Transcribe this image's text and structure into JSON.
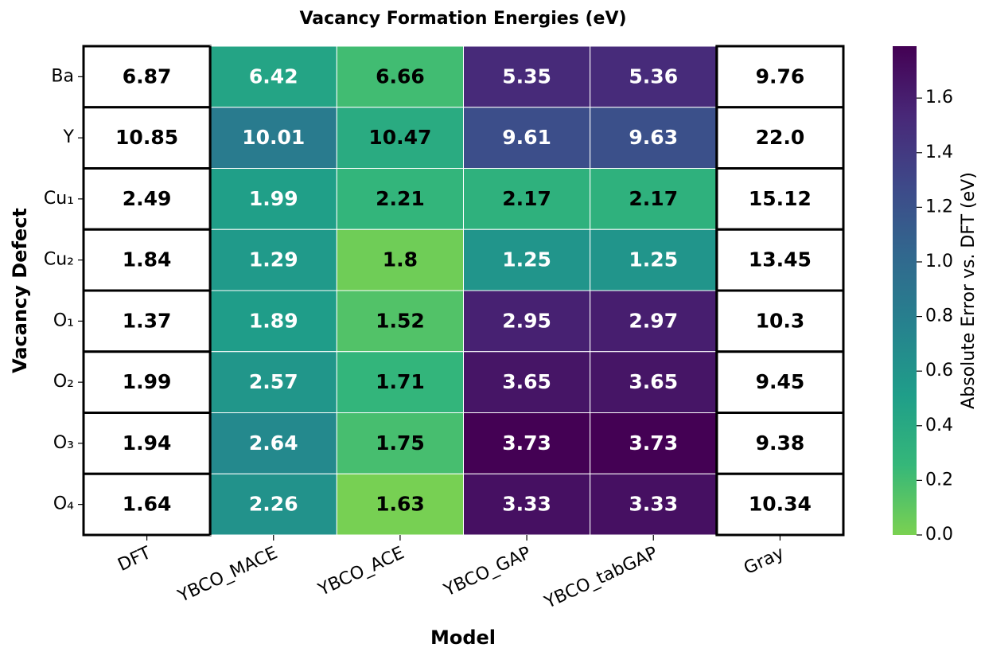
{
  "chart_data": {
    "type": "heatmap",
    "title": "Vacancy Formation Energies (eV)",
    "x_label": "Model",
    "y_label": "Vacancy Defect",
    "colorbar_label": "Absolute Error vs. DFT (eV)",
    "x_categories": [
      "DFT",
      "YBCO_MACE",
      "YBCO_ACE",
      "YBCO_GAP",
      "YBCO_tabGAP",
      "Gray"
    ],
    "y_categories": [
      "Ba",
      "Y",
      "Cu₁",
      "Cu₂",
      "O₁",
      "O₂",
      "O₃",
      "O₄"
    ],
    "values": [
      [
        6.87,
        6.42,
        6.66,
        5.35,
        5.36,
        9.76
      ],
      [
        10.85,
        10.01,
        10.47,
        9.61,
        9.63,
        22.0
      ],
      [
        2.49,
        1.99,
        2.21,
        2.17,
        2.17,
        15.12
      ],
      [
        1.84,
        1.29,
        1.8,
        1.25,
        1.25,
        13.45
      ],
      [
        1.37,
        1.89,
        1.52,
        2.95,
        2.97,
        10.3
      ],
      [
        1.99,
        2.57,
        1.71,
        3.65,
        3.65,
        9.45
      ],
      [
        1.94,
        2.64,
        1.75,
        3.73,
        3.73,
        9.38
      ],
      [
        1.64,
        2.26,
        1.63,
        3.33,
        3.33,
        10.34
      ]
    ],
    "value_labels": [
      [
        "6.87",
        "6.42",
        "6.66",
        "5.35",
        "5.36",
        "9.76"
      ],
      [
        "10.85",
        "10.01",
        "10.47",
        "9.61",
        "9.63",
        "22.0"
      ],
      [
        "2.49",
        "1.99",
        "2.21",
        "2.17",
        "2.17",
        "15.12"
      ],
      [
        "1.84",
        "1.29",
        "1.8",
        "1.25",
        "1.25",
        "13.45"
      ],
      [
        "1.37",
        "1.89",
        "1.52",
        "2.95",
        "2.97",
        "10.3"
      ],
      [
        "1.99",
        "2.57",
        "1.71",
        "3.65",
        "3.65",
        "9.45"
      ],
      [
        "1.94",
        "2.64",
        "1.75",
        "3.73",
        "3.73",
        "9.38"
      ],
      [
        "1.64",
        "2.26",
        "1.63",
        "3.33",
        "3.33",
        "10.34"
      ]
    ],
    "colormap": [
      "#7ad151",
      "#35b779",
      "#1f9e89",
      "#26828e",
      "#31688e",
      "#3e4989",
      "#482878",
      "#440154"
    ],
    "clim": [
      0,
      1.79
    ],
    "cticks": [
      {
        "value": 0,
        "label": "0.0"
      },
      0.2,
      0.4,
      0.6,
      0.8,
      {
        "value": 1,
        "label": "1.0"
      },
      1.2,
      1.4,
      1.6
    ]
  }
}
